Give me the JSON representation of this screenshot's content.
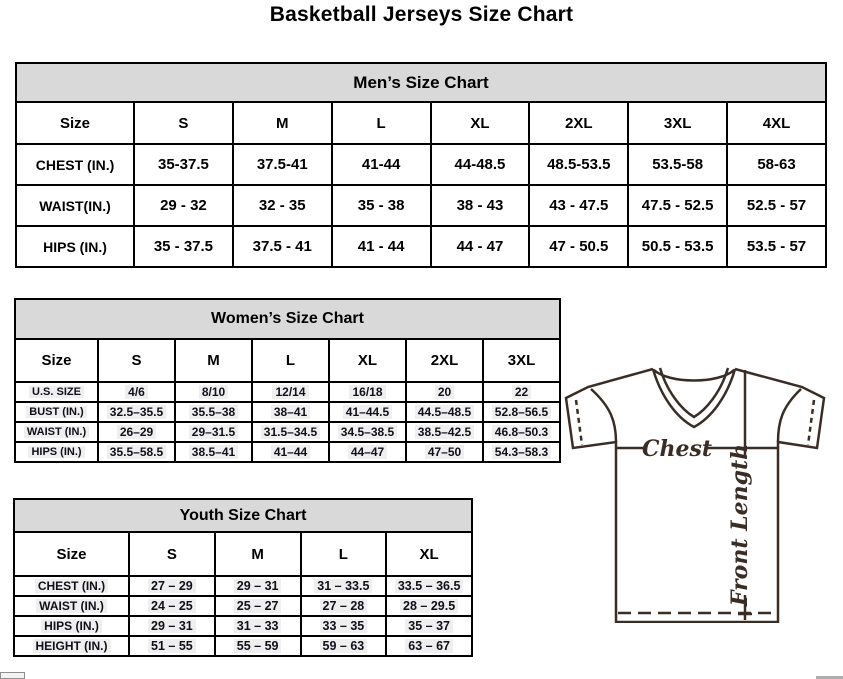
{
  "title": "Basketball Jerseys Size Chart",
  "colors": {
    "table_header_bg": "#d9d9d9",
    "table_border": "#000000",
    "cell_highlight_bg": "#efefef",
    "diagram_ink": "#3a2d26"
  },
  "tables": [
    {
      "id": "mens",
      "title": "Men’s Size Chart",
      "columns": [
        "Size",
        "S",
        "M",
        "L",
        "XL",
        "2XL",
        "3XL",
        "4XL"
      ],
      "rows": [
        {
          "label": "CHEST (IN.)",
          "values": [
            "35-37.5",
            "37.5-41",
            "41-44",
            "44-48.5",
            "48.5-53.5",
            "53.5-58",
            "58-63"
          ]
        },
        {
          "label": "WAIST(IN.)",
          "values": [
            "29 - 32",
            "32 - 35",
            "35 - 38",
            "38 - 43",
            "43 - 47.5",
            "47.5 - 52.5",
            "52.5 - 57"
          ]
        },
        {
          "label": "HIPS (IN.)",
          "values": [
            "35 - 37.5",
            "37.5 - 41",
            "41 - 44",
            "44 - 47",
            "47 - 50.5",
            "50.5 - 53.5",
            "53.5 - 57"
          ]
        }
      ]
    },
    {
      "id": "womens",
      "title": "Women’s Size Chart",
      "columns": [
        "Size",
        "S",
        "M",
        "L",
        "XL",
        "2XL",
        "3XL"
      ],
      "rows": [
        {
          "label": "U.S. SIZE",
          "values": [
            "4/6",
            "8/10",
            "12/14",
            "16/18",
            "20",
            "22"
          ]
        },
        {
          "label": "BUST (IN.)",
          "values": [
            "32.5–35.5",
            "35.5–38",
            "38–41",
            "41–44.5",
            "44.5–48.5",
            "52.8–56.5"
          ]
        },
        {
          "label": "WAIST (IN.)",
          "values": [
            "26–29",
            "29–31.5",
            "31.5–34.5",
            "34.5–38.5",
            "38.5–42.5",
            "46.8–50.3"
          ]
        },
        {
          "label": "HIPS (IN.)",
          "values": [
            "35.5–58.5",
            "38.5–41",
            "41–44",
            "44–47",
            "47–50",
            "54.3–58.3"
          ]
        }
      ]
    },
    {
      "id": "youth",
      "title": "Youth Size Chart",
      "columns": [
        "Size",
        "S",
        "M",
        "L",
        "XL"
      ],
      "rows": [
        {
          "label": "CHEST (IN.)",
          "values": [
            "27 – 29",
            "29 – 31",
            "31 – 33.5",
            "33.5 – 36.5"
          ]
        },
        {
          "label": "WAIST (IN.)",
          "values": [
            "24 – 25",
            "25 – 27",
            "27 – 28",
            "28 – 29.5"
          ]
        },
        {
          "label": "HIPS (IN.)",
          "values": [
            "29 – 31",
            "31 – 33",
            "33 – 35",
            "35 – 37"
          ]
        },
        {
          "label": "HEIGHT (IN.)",
          "values": [
            "51 – 55",
            "55 – 59",
            "59 – 63",
            "63 – 67"
          ]
        }
      ]
    }
  ],
  "diagram": {
    "chest_label": "Chest",
    "front_length_label": "Front Length"
  }
}
